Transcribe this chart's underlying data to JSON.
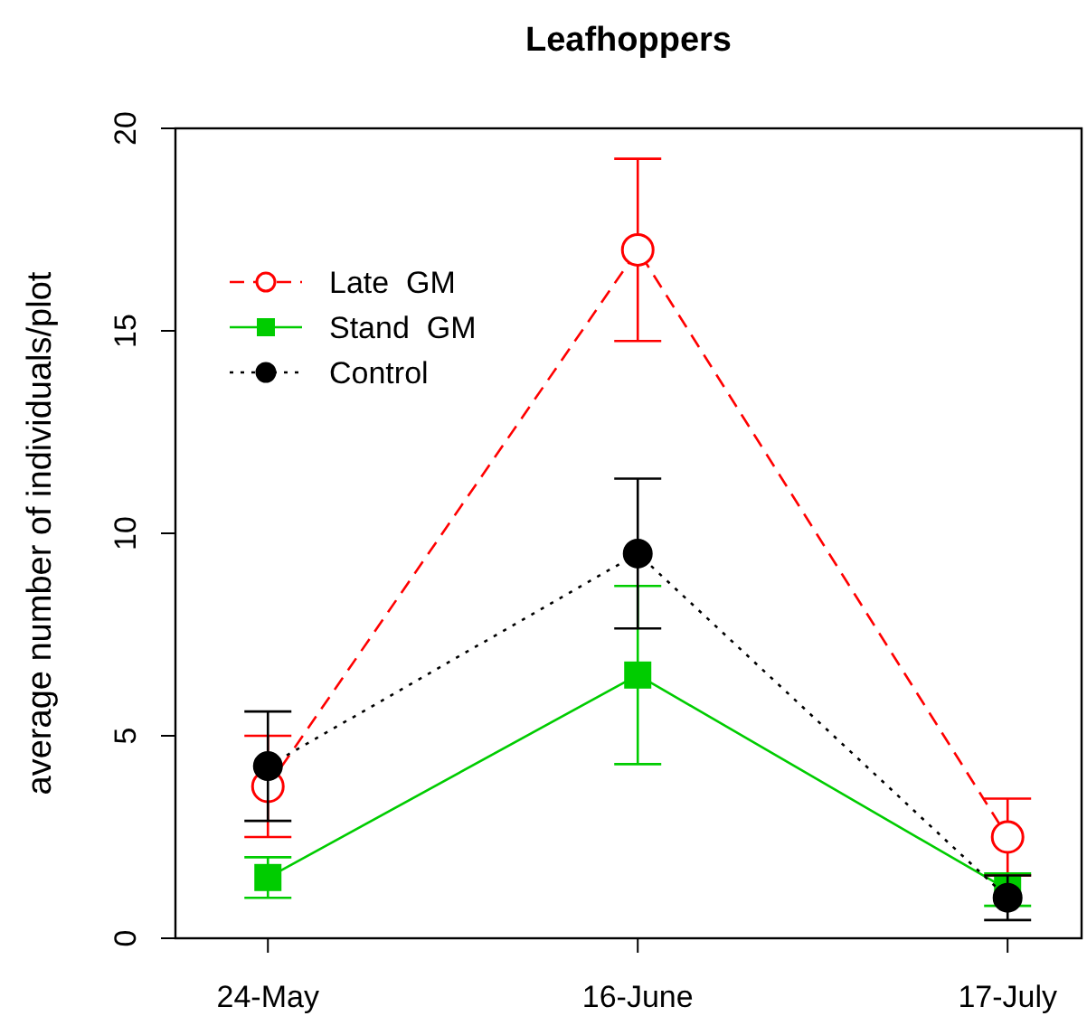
{
  "chart_data": {
    "type": "line",
    "title": "Leafhoppers",
    "ylabel": "average number of individuals/plot",
    "categories": [
      "24-May",
      "16-June",
      "17-July"
    ],
    "ylim": [
      0,
      20
    ],
    "yticks": [
      0,
      5,
      10,
      15,
      20
    ],
    "legend": "top left",
    "series": [
      {
        "name": "Late  GM",
        "color": "#ff0000",
        "values": [
          3.75,
          17,
          2.5
        ],
        "errors": [
          1.25,
          2.25,
          0.95
        ],
        "marker": "circle",
        "line_style": "dashed"
      },
      {
        "name": "Stand  GM",
        "color": "#00cc00",
        "values": [
          1.5,
          6.5,
          1.2
        ],
        "errors": [
          0.5,
          2.2,
          0.4
        ],
        "marker": "square",
        "line_style": "solid"
      },
      {
        "name": "Control",
        "color": "#000000",
        "values": [
          4.25,
          9.5,
          1.0
        ],
        "errors": [
          1.35,
          1.85,
          0.55
        ],
        "marker": "circle",
        "line_style": "dotted"
      }
    ]
  }
}
